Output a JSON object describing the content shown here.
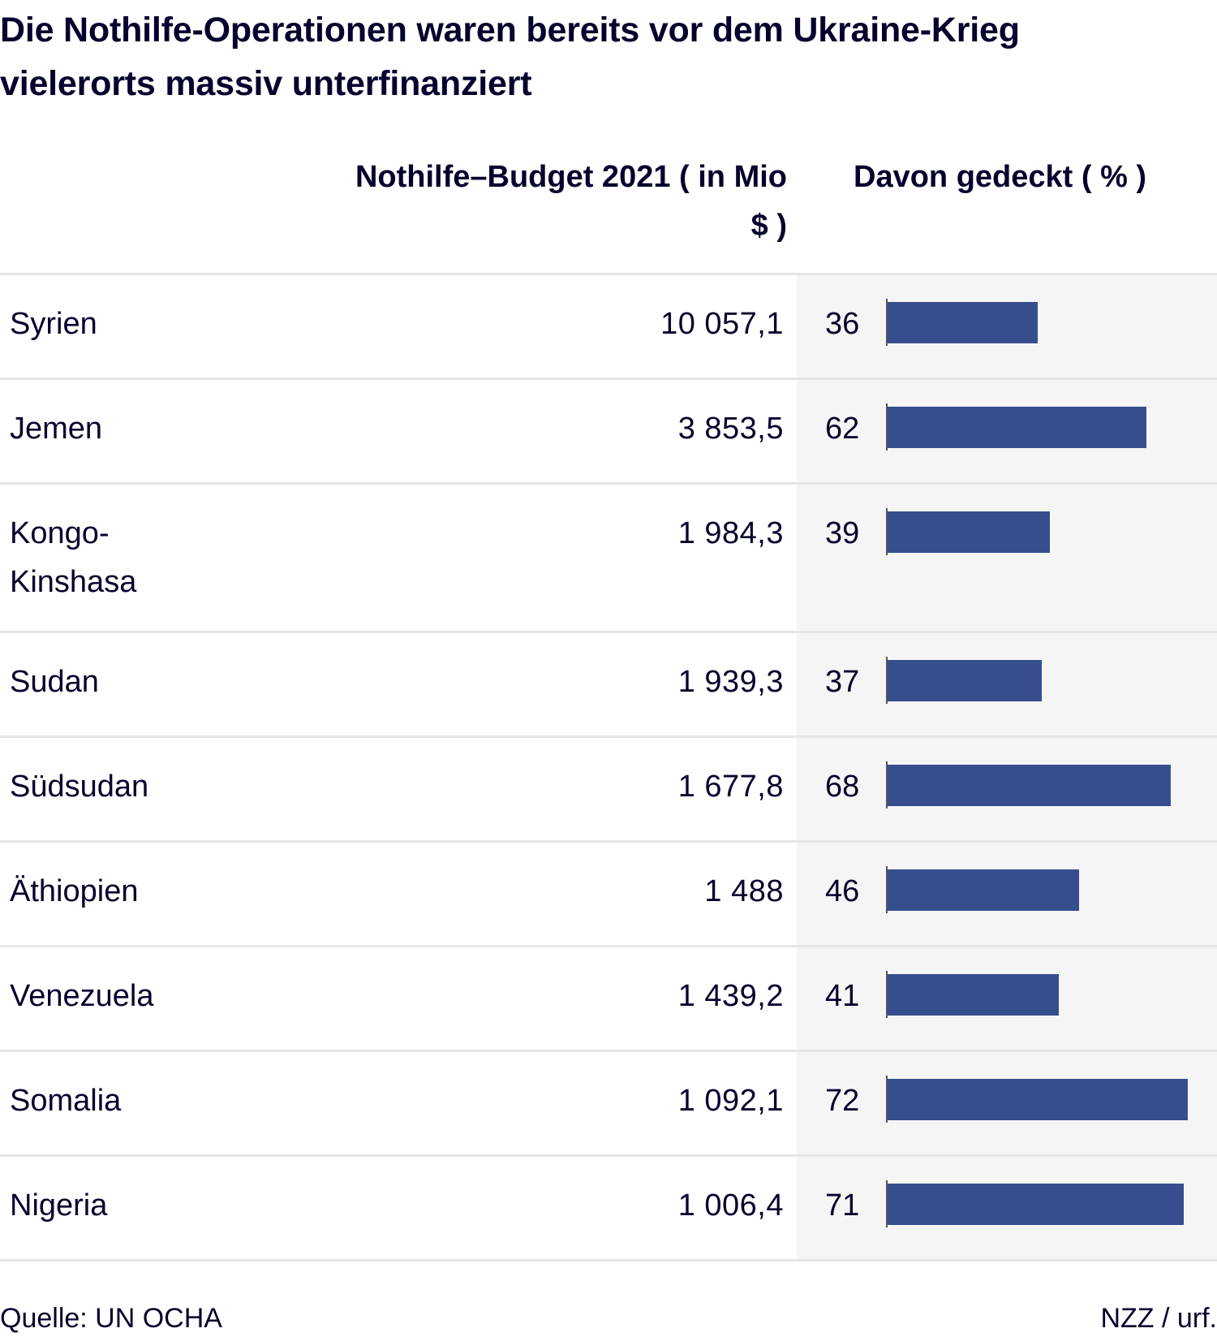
{
  "title": "Die Nothilfe-Operationen waren bereits vor dem Ukraine-Krieg vielerorts massiv unterfinanziert",
  "columns": {
    "budget_header": "Nothilfe–Budget 2021 ( in Mio $ )",
    "coverage_header": "Davon gedeckt ( % )"
  },
  "footer": {
    "source": "Quelle: UN OCHA",
    "credit": "NZZ / urf."
  },
  "chart_data": {
    "type": "table",
    "title": "Die Nothilfe-Operationen waren bereits vor dem Ukraine-Krieg vielerorts massiv unterfinanziert",
    "columns": [
      "",
      "Nothilfe–Budget 2021 ( in Mio $ )",
      "Davon gedeckt ( % )"
    ],
    "bar_max": 72,
    "rows": [
      {
        "country": "Syrien",
        "budget": "10 057,1",
        "budget_value": 10057.1,
        "covered": 36
      },
      {
        "country": "Jemen",
        "budget": "3 853,5",
        "budget_value": 3853.5,
        "covered": 62
      },
      {
        "country": "Kongo-Kinshasa",
        "budget": "1 984,3",
        "budget_value": 1984.3,
        "covered": 39
      },
      {
        "country": "Sudan",
        "budget": "1 939,3",
        "budget_value": 1939.3,
        "covered": 37
      },
      {
        "country": "Südsudan",
        "budget": "1 677,8",
        "budget_value": 1677.8,
        "covered": 68
      },
      {
        "country": "Äthiopien",
        "budget": "1 488",
        "budget_value": 1488,
        "covered": 46
      },
      {
        "country": "Venezuela",
        "budget": "1 439,2",
        "budget_value": 1439.2,
        "covered": 41
      },
      {
        "country": "Somalia",
        "budget": "1 092,1",
        "budget_value": 1092.1,
        "covered": 72
      },
      {
        "country": "Nigeria",
        "budget": "1 006,4",
        "budget_value": 1006.4,
        "covered": 71
      }
    ],
    "colors": {
      "bar": "#374e8e",
      "shade": "#f5f5f5",
      "divider": "#e6e6e6"
    }
  }
}
